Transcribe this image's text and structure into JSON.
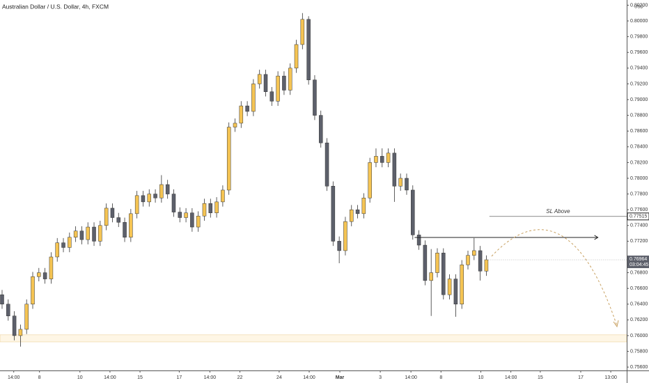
{
  "chart_data": {
    "type": "candlestick",
    "title": "Australian Dollar / U.S. Dollar, 4h, FXCM",
    "currency": "USD",
    "up_color": "#f5c453",
    "down_color": "#5d606b",
    "grid": false,
    "ylim": [
      0.75557,
      0.80266
    ],
    "yticks": [
      {
        "value": 0.756,
        "label": "0.75600"
      },
      {
        "value": 0.758,
        "label": "0.75800"
      },
      {
        "value": 0.76,
        "label": "0.76000"
      },
      {
        "value": 0.762,
        "label": "0.76200"
      },
      {
        "value": 0.764,
        "label": "0.76400"
      },
      {
        "value": 0.766,
        "label": "0.76600"
      },
      {
        "value": 0.768,
        "label": "0.76800"
      },
      {
        "value": 0.772,
        "label": "0.77200"
      },
      {
        "value": 0.774,
        "label": "0.77400"
      },
      {
        "value": 0.776,
        "label": "0.77600"
      },
      {
        "value": 0.778,
        "label": "0.77800"
      },
      {
        "value": 0.78,
        "label": "0.78000"
      },
      {
        "value": 0.782,
        "label": "0.78200"
      },
      {
        "value": 0.784,
        "label": "0.78400"
      },
      {
        "value": 0.786,
        "label": "0.78600"
      },
      {
        "value": 0.788,
        "label": "0.78800"
      },
      {
        "value": 0.79,
        "label": "0.79000"
      },
      {
        "value": 0.792,
        "label": "0.79200"
      },
      {
        "value": 0.794,
        "label": "0.79400"
      },
      {
        "value": 0.796,
        "label": "0.79600"
      },
      {
        "value": 0.798,
        "label": "0.79800"
      },
      {
        "value": 0.8,
        "label": "0.80000"
      },
      {
        "value": 0.802,
        "label": "0.80200"
      }
    ],
    "xlim": [
      -0.34,
      101.9
    ],
    "xticks": [
      {
        "value": 1.9,
        "label": "14:00"
      },
      {
        "value": 6.1,
        "label": "8"
      },
      {
        "value": 12.7,
        "label": "10"
      },
      {
        "value": 17.6,
        "label": "14:00"
      },
      {
        "value": 22.5,
        "label": "15"
      },
      {
        "value": 28.9,
        "label": "17"
      },
      {
        "value": 33.9,
        "label": "14:00"
      },
      {
        "value": 38.8,
        "label": "22"
      },
      {
        "value": 45.2,
        "label": "24"
      },
      {
        "value": 50.1,
        "label": "14:00"
      },
      {
        "value": 55.1,
        "label": "Mar"
      },
      {
        "value": 61.7,
        "label": "3"
      },
      {
        "value": 66.7,
        "label": "14:00"
      },
      {
        "value": 71.6,
        "label": "8"
      },
      {
        "value": 78.1,
        "label": "10"
      },
      {
        "value": 83,
        "label": "14:00"
      },
      {
        "value": 87.8,
        "label": "15"
      },
      {
        "value": 94.4,
        "label": "17"
      },
      {
        "value": 99.3,
        "label": "13:00"
      }
    ],
    "open": [
      0.7652,
      0.764,
      0.7625,
      0.76,
      0.7608,
      0.764,
      0.7675,
      0.768,
      0.7672,
      0.77,
      0.7718,
      0.7712,
      0.7725,
      0.7733,
      0.7722,
      0.7738,
      0.772,
      0.774,
      0.7762,
      0.775,
      0.7744,
      0.7725,
      0.7755,
      0.7778,
      0.777,
      0.778,
      0.7775,
      0.7792,
      0.778,
      0.7757,
      0.775,
      0.7756,
      0.7738,
      0.7752,
      0.7768,
      0.7756,
      0.777,
      0.7785,
      0.7865,
      0.787,
      0.7892,
      0.7885,
      0.792,
      0.7932,
      0.791,
      0.7898,
      0.793,
      0.7912,
      0.794,
      0.797,
      0.8002,
      0.7925,
      0.788,
      0.7845,
      0.779,
      0.772,
      0.7708,
      0.7745,
      0.776,
      0.7755,
      0.7775,
      0.782,
      0.7828,
      0.782,
      0.7832,
      0.779,
      0.78,
      0.7785,
      0.7728,
      0.7715,
      0.767,
      0.768,
      0.7705,
      0.7652,
      0.7672,
      0.764,
      0.769,
      0.7702,
      0.7708,
      0.7682
    ],
    "high": [
      0.7658,
      0.7646,
      0.7631,
      0.7614,
      0.7646,
      0.7681,
      0.7686,
      0.7686,
      0.7706,
      0.7724,
      0.7724,
      0.7731,
      0.7739,
      0.7739,
      0.7744,
      0.7744,
      0.7746,
      0.7768,
      0.7768,
      0.7756,
      0.775,
      0.7761,
      0.7784,
      0.7784,
      0.7786,
      0.7786,
      0.7804,
      0.7798,
      0.7786,
      0.7763,
      0.7762,
      0.7762,
      0.7758,
      0.7774,
      0.7774,
      0.7776,
      0.7791,
      0.7871,
      0.7876,
      0.7898,
      0.7898,
      0.7926,
      0.7938,
      0.7938,
      0.7916,
      0.7936,
      0.7936,
      0.7946,
      0.7976,
      0.801,
      0.8006,
      0.7931,
      0.7886,
      0.7851,
      0.7796,
      0.7726,
      0.7751,
      0.7766,
      0.7766,
      0.7781,
      0.7826,
      0.7838,
      0.7838,
      0.7838,
      0.7838,
      0.7806,
      0.7806,
      0.7791,
      0.7734,
      0.7721,
      0.771,
      0.7711,
      0.7711,
      0.7678,
      0.7678,
      0.7696,
      0.7708,
      0.7724,
      0.7714,
      0.7702
    ],
    "low": [
      0.7634,
      0.7619,
      0.7594,
      0.7586,
      0.7602,
      0.7634,
      0.7669,
      0.7666,
      0.7666,
      0.7694,
      0.7706,
      0.7706,
      0.7719,
      0.7716,
      0.7716,
      0.7714,
      0.7714,
      0.7734,
      0.7744,
      0.7738,
      0.7719,
      0.7719,
      0.7749,
      0.7764,
      0.7764,
      0.7769,
      0.7769,
      0.7774,
      0.7751,
      0.7744,
      0.7744,
      0.7732,
      0.7732,
      0.7746,
      0.775,
      0.775,
      0.7764,
      0.7779,
      0.7859,
      0.7864,
      0.7879,
      0.7879,
      0.7914,
      0.7904,
      0.7892,
      0.7892,
      0.7906,
      0.7906,
      0.7934,
      0.7964,
      0.7919,
      0.7874,
      0.7839,
      0.7784,
      0.7714,
      0.7692,
      0.7702,
      0.7739,
      0.7749,
      0.7749,
      0.7769,
      0.7814,
      0.7814,
      0.7814,
      0.777,
      0.7784,
      0.7779,
      0.7722,
      0.7709,
      0.7664,
      0.7625,
      0.7674,
      0.7646,
      0.7646,
      0.7624,
      0.7634,
      0.7684,
      0.7696,
      0.767,
      0.7676
    ],
    "close": [
      0.764,
      0.7625,
      0.76,
      0.7608,
      0.764,
      0.7675,
      0.768,
      0.7672,
      0.77,
      0.7718,
      0.7712,
      0.7725,
      0.7733,
      0.7722,
      0.7738,
      0.772,
      0.774,
      0.7762,
      0.775,
      0.7744,
      0.7725,
      0.7755,
      0.7778,
      0.777,
      0.778,
      0.7775,
      0.7792,
      0.778,
      0.7757,
      0.775,
      0.7756,
      0.7738,
      0.7752,
      0.7768,
      0.7756,
      0.777,
      0.7785,
      0.7865,
      0.787,
      0.7892,
      0.7885,
      0.792,
      0.7932,
      0.791,
      0.7898,
      0.793,
      0.7912,
      0.794,
      0.797,
      0.8002,
      0.7925,
      0.788,
      0.7845,
      0.779,
      0.772,
      0.7708,
      0.7745,
      0.776,
      0.7755,
      0.7775,
      0.782,
      0.7828,
      0.782,
      0.7832,
      0.779,
      0.78,
      0.7785,
      0.7728,
      0.7715,
      0.767,
      0.768,
      0.7705,
      0.7652,
      0.7672,
      0.764,
      0.769,
      0.7702,
      0.7708,
      0.7682,
      0.76964
    ],
    "last_price": 0.76964,
    "last_price_label": "0.76964",
    "countdown": "03:04:45",
    "sl_line": {
      "label": "SL Above",
      "value": 0.77515,
      "value_label": "0.77515",
      "from": 79.5
    },
    "ray": {
      "value": 0.77248,
      "from": 67.3,
      "to": 97.2
    },
    "zone": {
      "top": 0.7601,
      "bottom": 0.7592
    }
  }
}
